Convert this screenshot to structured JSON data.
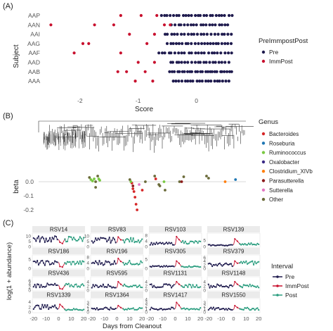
{
  "colors": {
    "pre": "#1f1b4e",
    "immpost": "#c8102e",
    "post": "#2a9d7f",
    "axis_text": "#555555",
    "tree": "#333333",
    "zero_line": "#cccccc"
  },
  "chart_data": [
    {
      "panel_label": "(A)",
      "type": "scatter",
      "xlabel": "Score",
      "ylabel": "Subject",
      "xlim": [
        -2.65,
        0.85
      ],
      "x_ticks": [
        -2,
        -1,
        0
      ],
      "x_tick_labels": [
        "-2",
        "-1",
        "0"
      ],
      "categories": [
        "AAP",
        "AAN",
        "AAI",
        "AAG",
        "AAF",
        "AAD",
        "AAB",
        "AAA"
      ],
      "legend_title": "PreImmpostPost",
      "legend_entries": [
        "Pre",
        "ImmPost"
      ],
      "legend_placement": "right",
      "series": [
        {
          "name": "Pre",
          "color_key": "pre",
          "points": [
            {
              "subject": "AAP",
              "x": [
                -0.6,
                0.6
              ],
              "n": 24
            },
            {
              "subject": "AAN",
              "x": [
                -0.42,
                0.55
              ],
              "n": 19
            },
            {
              "subject": "AAI",
              "x": [
                -0.55,
                0.6
              ],
              "n": 21
            },
            {
              "subject": "AAG",
              "x": [
                -0.5,
                0.6
              ],
              "n": 22
            },
            {
              "subject": "AAF",
              "x": [
                -0.65,
                0.6
              ],
              "n": 23
            },
            {
              "subject": "AAD",
              "x": [
                -0.45,
                0.55
              ],
              "n": 20
            },
            {
              "subject": "AAB",
              "x": [
                -0.45,
                0.62
              ],
              "n": 26
            },
            {
              "subject": "AAA",
              "x": [
                -0.4,
                0.55
              ],
              "n": 20
            }
          ]
        },
        {
          "name": "ImmPost",
          "color_key": "immpost",
          "points": [
            {
              "subject": "AAP",
              "x": [
                -1.3,
                -0.95,
                -0.68
              ]
            },
            {
              "subject": "AAN",
              "x": [
                -2.5,
                -1.75,
                -1.42,
                -0.55,
                -0.45
              ]
            },
            {
              "subject": "AAI",
              "x": [
                -1.15,
                -0.72
              ]
            },
            {
              "subject": "AAG",
              "x": [
                -1.95,
                -1.85,
                -0.85
              ]
            },
            {
              "subject": "AAF",
              "x": [
                -2.1,
                -1.3
              ]
            },
            {
              "subject": "AAD",
              "x": [
                -1.0,
                -0.72
              ]
            },
            {
              "subject": "AAB",
              "x": [
                -1.35,
                -1.2,
                -0.88
              ]
            },
            {
              "subject": "AAA",
              "x": [
                -1.05,
                -0.75
              ]
            }
          ]
        }
      ]
    },
    {
      "panel_label": "(B)",
      "type": "scatter",
      "ylabel": "beta",
      "ylim": [
        -0.22,
        0.1
      ],
      "y_ticks": [
        0.0,
        -0.1,
        -0.2
      ],
      "y_tick_labels": [
        "0.0",
        "-0.1",
        "-0.2"
      ],
      "legend_title": "Genus",
      "legend_placement": "right",
      "genera": [
        {
          "name": "Bacteroides",
          "color": "#d62728"
        },
        {
          "name": "Roseburia",
          "color": "#1f77b4"
        },
        {
          "name": "Ruminococcus",
          "color": "#7ac943"
        },
        {
          "name": "Oxalobacter",
          "color": "#3b2a86"
        },
        {
          "name": "Clostridium_XIVb",
          "color": "#ff7f0e"
        },
        {
          "name": "Parasutterella",
          "color": "#8b1a1a"
        },
        {
          "name": "Sutterella",
          "color": "#e377c2"
        },
        {
          "name": "Other",
          "color": "#6b6b3a"
        }
      ],
      "points": [
        {
          "pos": 0.245,
          "beta": 0.03,
          "genus": "Other"
        },
        {
          "pos": 0.252,
          "beta": 0.015,
          "genus": "Ruminococcus"
        },
        {
          "pos": 0.26,
          "beta": 0.005,
          "genus": "Ruminococcus"
        },
        {
          "pos": 0.268,
          "beta": 0.02,
          "genus": "Ruminococcus"
        },
        {
          "pos": 0.275,
          "beta": 0.0,
          "genus": "Other"
        },
        {
          "pos": 0.285,
          "beta": 0.04,
          "genus": "Other"
        },
        {
          "pos": 0.29,
          "beta": 0.02,
          "genus": "Ruminococcus"
        },
        {
          "pos": 0.295,
          "beta": 0.01,
          "genus": "Ruminococcus"
        },
        {
          "pos": 0.275,
          "beta": -0.04,
          "genus": "Other"
        },
        {
          "pos": 0.44,
          "beta": 0.015,
          "genus": "Other"
        },
        {
          "pos": 0.45,
          "beta": -0.01,
          "genus": "Bacteroides"
        },
        {
          "pos": 0.455,
          "beta": -0.05,
          "genus": "Bacteroides"
        },
        {
          "pos": 0.46,
          "beta": -0.07,
          "genus": "Bacteroides"
        },
        {
          "pos": 0.465,
          "beta": -0.11,
          "genus": "Bacteroides"
        },
        {
          "pos": 0.47,
          "beta": -0.16,
          "genus": "Bacteroides"
        },
        {
          "pos": 0.475,
          "beta": -0.2,
          "genus": "Bacteroides"
        },
        {
          "pos": 0.455,
          "beta": -0.03,
          "genus": "Parasutterella"
        },
        {
          "pos": 0.485,
          "beta": -0.02,
          "genus": "Sutterella"
        },
        {
          "pos": 0.445,
          "beta": 0.0,
          "genus": "Ruminococcus"
        },
        {
          "pos": 0.5,
          "beta": -0.06,
          "genus": "Bacteroides"
        },
        {
          "pos": 0.515,
          "beta": 0.0,
          "genus": "Other"
        },
        {
          "pos": 0.56,
          "beta": 0.04,
          "genus": "Other"
        },
        {
          "pos": 0.565,
          "beta": 0.02,
          "genus": "Bacteroides"
        },
        {
          "pos": 0.58,
          "beta": -0.02,
          "genus": "Other"
        },
        {
          "pos": 0.585,
          "beta": -0.03,
          "genus": "Other"
        },
        {
          "pos": 0.605,
          "beta": 0.0,
          "genus": "Ruminococcus"
        },
        {
          "pos": 0.61,
          "beta": -0.06,
          "genus": "Other"
        },
        {
          "pos": 0.68,
          "beta": 0.0,
          "genus": "Other"
        },
        {
          "pos": 0.69,
          "beta": 0.0,
          "genus": "Parasutterella"
        },
        {
          "pos": 0.7,
          "beta": 0.035,
          "genus": "Other"
        },
        {
          "pos": 0.81,
          "beta": 0.04,
          "genus": "Other"
        },
        {
          "pos": 0.82,
          "beta": 0.025,
          "genus": "Other"
        },
        {
          "pos": 0.9,
          "beta": 0.0,
          "genus": "Clostridium_XIVb"
        },
        {
          "pos": 0.95,
          "beta": 0.015,
          "genus": "Roseburia"
        }
      ]
    },
    {
      "panel_label": "(C)",
      "type": "line",
      "xlabel": "Days from Cleanout",
      "ylabel": "log(1 + abundance)",
      "xlim": [
        -21,
        21
      ],
      "x_ticks": [
        -20,
        -10,
        0,
        10,
        20
      ],
      "x_tick_labels": [
        "-20",
        "-10",
        "0",
        "10",
        "20"
      ],
      "legend_title": "Interval",
      "legend_entries": [
        "Pre",
        "ImmPost",
        "Post"
      ],
      "legend_placement": "right",
      "facets": [
        {
          "name": "RSV14",
          "ymax": 12,
          "y_ticks": [
            0,
            5,
            10
          ],
          "pre_level": 7,
          "imm_level": 4,
          "post_level": 7
        },
        {
          "name": "RSV83",
          "ymax": 12,
          "y_ticks": [
            0,
            5,
            10
          ],
          "pre_level": 6,
          "imm_level": 9,
          "post_level": 6
        },
        {
          "name": "RSV103",
          "ymax": 9,
          "y_ticks": [
            0,
            4,
            8
          ],
          "pre_level": 2,
          "imm_level": 7,
          "post_level": 3
        },
        {
          "name": "RSV139",
          "ymax": 10,
          "y_ticks": [
            0,
            5
          ],
          "pre_level": 1,
          "imm_level": 6,
          "post_level": 2
        },
        {
          "name": "RSV186",
          "ymax": 7,
          "y_ticks": [
            0,
            5
          ],
          "pre_level": 3,
          "imm_level": 1,
          "post_level": 3
        },
        {
          "name": "RSV196",
          "ymax": 9,
          "y_ticks": [
            0,
            4,
            8
          ],
          "pre_level": 4,
          "imm_level": 7,
          "post_level": 4
        },
        {
          "name": "RSV305",
          "ymax": 7,
          "y_ticks": [
            0,
            5
          ],
          "pre_level": 1,
          "imm_level": 4,
          "post_level": 1
        },
        {
          "name": "RSV379",
          "ymax": 7,
          "y_ticks": [
            0,
            2,
            4,
            6
          ],
          "pre_level": 2,
          "imm_level": 4,
          "post_level": 3
        },
        {
          "name": "RSV436",
          "ymax": 8,
          "y_ticks": [
            0,
            2,
            4,
            6
          ],
          "pre_level": 3,
          "imm_level": 1,
          "post_level": 3
        },
        {
          "name": "RSV595",
          "ymax": 6,
          "y_ticks": [
            0,
            2,
            4
          ],
          "pre_level": 2,
          "imm_level": 4,
          "post_level": 2
        },
        {
          "name": "RSV1131",
          "ymax": 6,
          "y_ticks": [
            0,
            2,
            4
          ],
          "pre_level": 2,
          "imm_level": 4,
          "post_level": 2
        },
        {
          "name": "RSV1148",
          "ymax": 6,
          "y_ticks": [
            0,
            2,
            4
          ],
          "pre_level": 2,
          "imm_level": 4,
          "post_level": 2
        },
        {
          "name": "RSV1339",
          "ymax": 5,
          "y_ticks": [
            0,
            2,
            4
          ],
          "pre_level": 2,
          "imm_level": 3,
          "post_level": 1
        },
        {
          "name": "RSV1364",
          "ymax": 4,
          "y_ticks": [
            0,
            1,
            2,
            3
          ],
          "pre_level": 1,
          "imm_level": 2,
          "post_level": 1
        },
        {
          "name": "RSV1417",
          "ymax": 4,
          "y_ticks": [
            0,
            1,
            2,
            3,
            4
          ],
          "pre_level": 1,
          "imm_level": 3,
          "post_level": 1
        },
        {
          "name": "RSV1550",
          "ymax": 4,
          "y_ticks": [
            0,
            1,
            2,
            3
          ],
          "pre_level": 1,
          "imm_level": 2,
          "post_level": 1
        }
      ]
    }
  ]
}
